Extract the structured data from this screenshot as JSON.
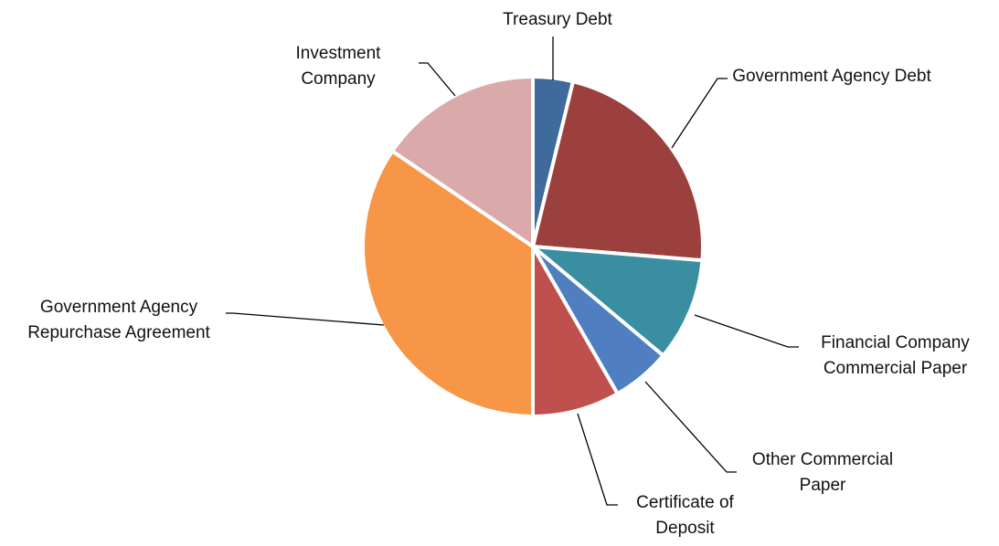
{
  "chart_data": {
    "type": "pie",
    "categories": [
      "Treasury Debt",
      "Government Agency Debt",
      "Financial Company Commercial Paper",
      "Other Commercial Paper",
      "Certificate of Deposit",
      "Government Agency Repurchase Agreement",
      "Investment Company"
    ],
    "values": [
      3.8,
      22.5,
      9.8,
      5.6,
      8.3,
      34.5,
      15.5
    ],
    "colors": [
      "#3f6a9c",
      "#9c403e",
      "#3a8ea2",
      "#4f7fc0",
      "#c0504d",
      "#f79646",
      "#d9aaa9"
    ]
  }
}
